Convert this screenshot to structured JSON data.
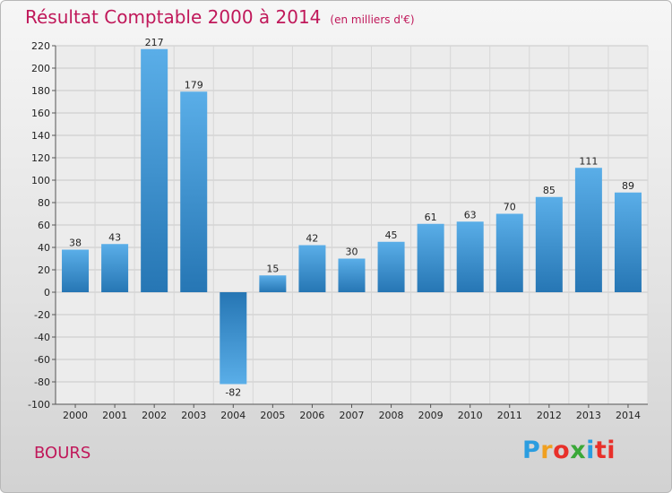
{
  "header": {
    "title": "Résultat Comptable 2000 à 2014",
    "unit": "(en milliers d'€)"
  },
  "footer": {
    "town": "BOURS",
    "logo_letters": [
      "P",
      "r",
      "o",
      "x",
      "i",
      "ti"
    ]
  },
  "colors": {
    "accent": "#c0185a",
    "bar_light": "#5aaee8",
    "bar_dark": "#2676b4"
  },
  "chart_data": {
    "type": "bar",
    "title": "Résultat Comptable 2000 à 2014",
    "subtitle": "(en milliers d'€)",
    "xlabel": "",
    "ylabel": "",
    "categories": [
      "2000",
      "2001",
      "2002",
      "2003",
      "2004",
      "2005",
      "2006",
      "2007",
      "2008",
      "2009",
      "2010",
      "2011",
      "2012",
      "2013",
      "2014"
    ],
    "values": [
      38,
      43,
      217,
      179,
      -82,
      15,
      42,
      30,
      45,
      61,
      63,
      70,
      85,
      111,
      89
    ],
    "ylim": [
      -100,
      220
    ],
    "yticks": [
      220,
      200,
      180,
      160,
      140,
      120,
      100,
      80,
      60,
      40,
      20,
      0,
      -20,
      -40,
      -60,
      -80,
      -100
    ],
    "grid": true,
    "legend": "none"
  }
}
